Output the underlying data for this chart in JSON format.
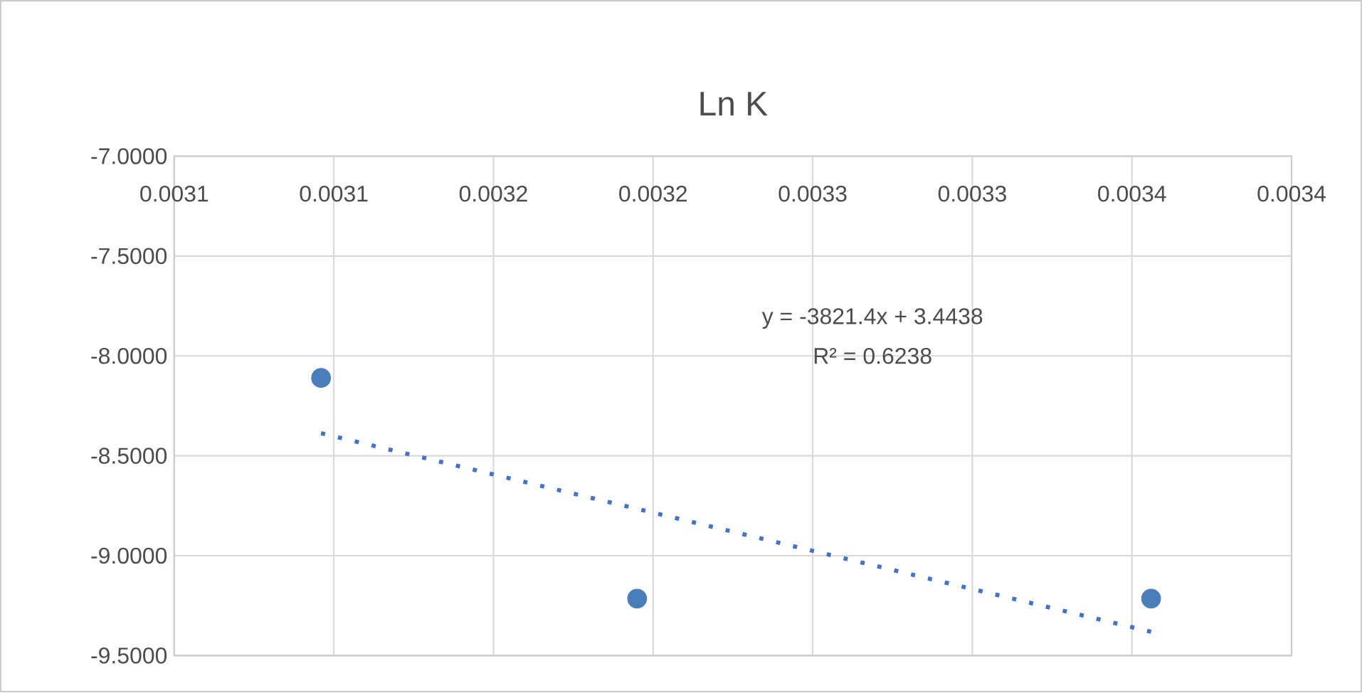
{
  "chart_data": {
    "type": "scatter",
    "title": "Ln K",
    "xlim": [
      0.00305,
      0.0034
    ],
    "xticks": [
      {
        "value": 0.00305,
        "label": "0.0031"
      },
      {
        "value": 0.0031,
        "label": "0.0031"
      },
      {
        "value": 0.00315,
        "label": "0.0032"
      },
      {
        "value": 0.0032,
        "label": "0.0032"
      },
      {
        "value": 0.00325,
        "label": "0.0033"
      },
      {
        "value": 0.0033,
        "label": "0.0033"
      },
      {
        "value": 0.00335,
        "label": "0.0034"
      },
      {
        "value": 0.0034,
        "label": "0.0034"
      }
    ],
    "ylim": [
      -9.5,
      -7
    ],
    "yticks": [
      {
        "value": -9.5,
        "label": "-9.5000"
      },
      {
        "value": -9.0,
        "label": "-9.0000"
      },
      {
        "value": -8.5,
        "label": "-8.5000"
      },
      {
        "value": -8.0,
        "label": "-8.0000"
      },
      {
        "value": -7.5,
        "label": "-7.5000"
      },
      {
        "value": -7.0,
        "label": "-7.0000"
      }
    ],
    "grid": true,
    "series": [
      {
        "color": "#4a7ebb",
        "marker": "circle",
        "x": [
          0.003096,
          0.003195,
          0.003356
        ],
        "values": [
          -8.11,
          -9.215,
          -9.215
        ]
      },
      {
        "type": "line",
        "color": "#4472c4",
        "marker": "none",
        "line_style": "dotted",
        "x": [
          0.003096,
          0.003356
        ],
        "values": [
          -8.387,
          -9.381
        ]
      }
    ],
    "annotations": [
      "y = -3821.4x + 3.4438",
      "R² = 0.6238"
    ]
  }
}
